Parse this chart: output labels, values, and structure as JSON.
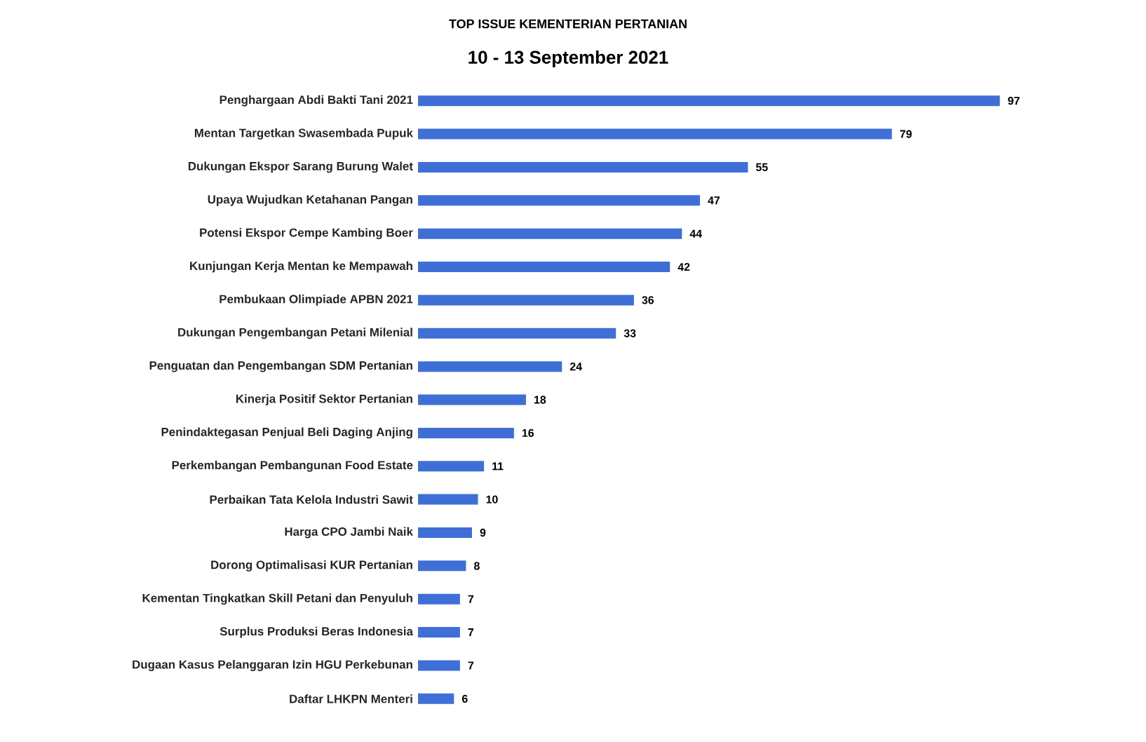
{
  "chart_data": {
    "type": "bar",
    "orientation": "horizontal",
    "title": "TOP ISSUE KEMENTERIAN PERTANIAN",
    "subtitle": "10 - 13 September 2021",
    "categories": [
      "Penghargaan Abdi Bakti Tani 2021",
      "Mentan Targetkan Swasembada Pupuk",
      "Dukungan Ekspor Sarang Burung Walet",
      "Upaya Wujudkan Ketahanan Pangan",
      "Potensi Ekspor Cempe Kambing Boer",
      "Kunjungan Kerja Mentan ke Mempawah",
      "Pembukaan Olimpiade APBN 2021",
      "Dukungan Pengembangan Petani Milenial",
      "Penguatan dan Pengembangan SDM Pertanian",
      "Kinerja Positif Sektor Pertanian",
      "Penindaktegasan Penjual Beli Daging Anjing",
      "Perkembangan Pembangunan Food Estate",
      "Perbaikan Tata Kelola Industri Sawit",
      "Harga CPO Jambi Naik",
      "Dorong Optimalisasi KUR Pertanian",
      "Kementan Tingkatkan Skill Petani dan Penyuluh",
      "Surplus Produksi Beras Indonesia",
      "Dugaan Kasus Pelanggaran Izin HGU Perkebunan",
      "Daftar LHKPN Menteri"
    ],
    "values": [
      97,
      79,
      55,
      47,
      44,
      42,
      36,
      33,
      24,
      18,
      16,
      11,
      10,
      9,
      8,
      7,
      7,
      7,
      6
    ],
    "color": "#3f6fd6",
    "data_labels": true
  }
}
